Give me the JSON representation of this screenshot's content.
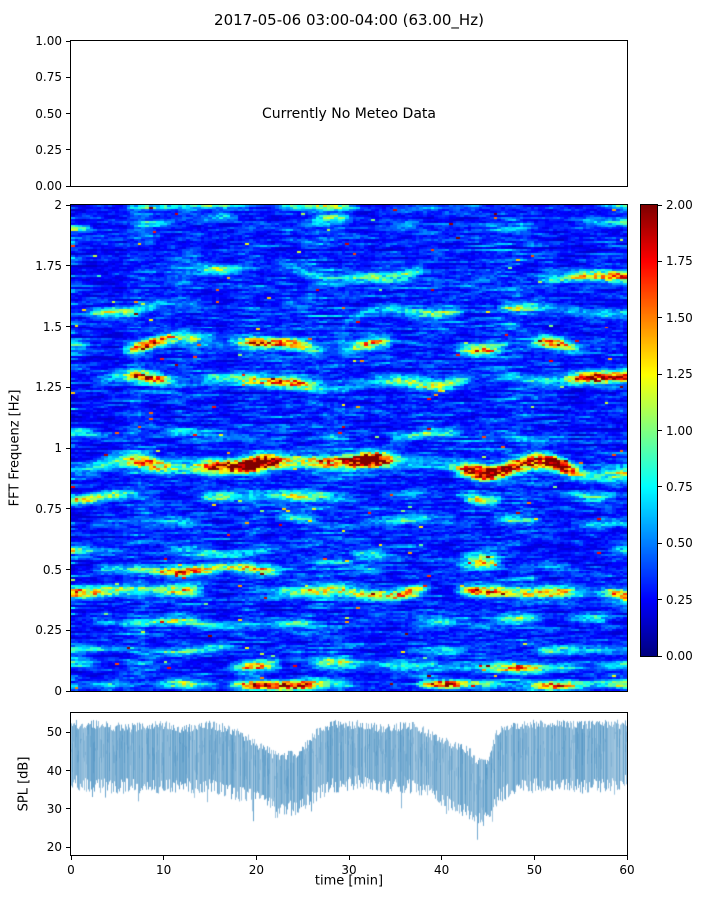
{
  "chart_data": [
    {
      "id": "meteo-panel",
      "type": "other",
      "title": "2017-05-06 03:00-04:00 (63.00_Hz)",
      "annotation": "Currently No Meteo Data",
      "ylim": [
        0,
        1
      ],
      "yticks": [
        0,
        0.25,
        0.5,
        0.75,
        1
      ],
      "ytick_labels": [
        "0.00",
        "0.25",
        "0.50",
        "0.75",
        "1.00"
      ],
      "grid": false
    },
    {
      "id": "spectrogram",
      "type": "heatmap",
      "ylabel": "FFT Frequenz [Hz]",
      "xlim": [
        0,
        60
      ],
      "ylim": [
        0,
        2
      ],
      "yticks": [
        0,
        0.25,
        0.5,
        0.75,
        1,
        1.25,
        1.5,
        1.75,
        2
      ],
      "ytick_labels": [
        "0",
        "0.25",
        "0.5",
        "0.75",
        "1",
        "1.25",
        "1.5",
        "1.75",
        "2"
      ],
      "clim": [
        0,
        2
      ],
      "colormap": "jet",
      "colorbar_ticks": [
        0,
        0.25,
        0.5,
        0.75,
        1,
        1.25,
        1.5,
        1.75,
        2
      ],
      "colorbar_tick_labels": [
        "0.00",
        "0.25",
        "0.50",
        "0.75",
        "1.00",
        "1.25",
        "1.50",
        "1.75",
        "2.00"
      ],
      "seed": 20170506,
      "background_level": 0.25,
      "bands": [
        {
          "freq": 0.02,
          "amp": 1.5,
          "width": 0.012,
          "wob": 0.008,
          "bias": 0.3
        },
        {
          "freq": 0.1,
          "amp": 1.2,
          "width": 0.014,
          "wob": 0.015,
          "bias": 0.1
        },
        {
          "freq": 0.17,
          "amp": 0.8,
          "width": 0.012,
          "wob": 0.015,
          "bias": 0.0
        },
        {
          "freq": 0.28,
          "amp": 0.9,
          "width": 0.012,
          "wob": 0.02,
          "bias": 0.0
        },
        {
          "freq": 0.4,
          "amp": 1.5,
          "width": 0.016,
          "wob": 0.02,
          "bias": 0.2
        },
        {
          "freq": 0.5,
          "amp": 1.3,
          "width": 0.014,
          "wob": 0.025,
          "bias": 0.1
        },
        {
          "freq": 0.57,
          "amp": 0.8,
          "width": 0.012,
          "wob": 0.02,
          "bias": 0.0
        },
        {
          "freq": 0.7,
          "amp": 0.7,
          "width": 0.012,
          "wob": 0.02,
          "bias": 0.0
        },
        {
          "freq": 0.8,
          "amp": 1.2,
          "width": 0.014,
          "wob": 0.02,
          "bias": 0.15
        },
        {
          "freq": 0.92,
          "amp": 1.9,
          "width": 0.02,
          "wob": 0.035,
          "bias": 0.55
        },
        {
          "freq": 1.05,
          "amp": 0.7,
          "width": 0.012,
          "wob": 0.02,
          "bias": 0.0
        },
        {
          "freq": 1.27,
          "amp": 1.5,
          "width": 0.016,
          "wob": 0.03,
          "bias": 0.25
        },
        {
          "freq": 1.43,
          "amp": 1.4,
          "width": 0.015,
          "wob": 0.03,
          "bias": 0.2
        },
        {
          "freq": 1.57,
          "amp": 1.0,
          "width": 0.013,
          "wob": 0.05,
          "bias": 0.05
        },
        {
          "freq": 1.72,
          "amp": 1.4,
          "width": 0.015,
          "wob": 0.04,
          "bias": 0.15
        },
        {
          "freq": 1.93,
          "amp": 0.9,
          "width": 0.012,
          "wob": 0.03,
          "bias": 0.0
        },
        {
          "freq": 2.0,
          "amp": 0.9,
          "width": 0.01,
          "wob": 0.01,
          "bias": 0.1
        }
      ]
    },
    {
      "id": "spl",
      "type": "line",
      "ylabel": "SPL [dB]",
      "xlabel": "time [min]",
      "xlim": [
        0,
        60
      ],
      "ylim": [
        18,
        55
      ],
      "yticks": [
        20,
        30,
        40,
        50
      ],
      "ytick_labels": [
        "20",
        "30",
        "40",
        "50"
      ],
      "xticks": [
        0,
        10,
        20,
        30,
        40,
        50,
        60
      ],
      "xtick_labels": [
        "0",
        "10",
        "20",
        "30",
        "40",
        "50",
        "60"
      ],
      "color": "#1f77b4",
      "envelope": {
        "t": [
          0,
          3,
          6,
          9,
          12,
          15,
          18,
          20,
          22,
          24,
          25,
          26,
          28,
          31,
          34,
          37,
          39,
          41,
          43,
          44,
          45,
          46,
          48,
          52,
          56,
          60
        ],
        "top": [
          52,
          52,
          51,
          52,
          51,
          52,
          50,
          47,
          44,
          44,
          45,
          49,
          52,
          52,
          51,
          52,
          49,
          47,
          45,
          42,
          43,
          50,
          52,
          52,
          52,
          52
        ],
        "bottom": [
          37,
          36,
          36,
          36,
          36,
          36,
          34,
          33,
          31,
          30,
          31,
          33,
          36,
          37,
          36,
          36,
          34,
          31,
          29,
          27,
          28,
          33,
          36,
          36,
          36,
          37
        ]
      }
    }
  ]
}
